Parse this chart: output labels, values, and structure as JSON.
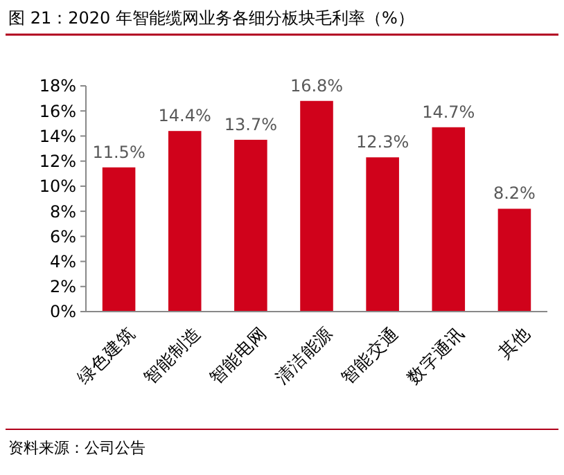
{
  "chart_data": {
    "type": "bar",
    "title": "图 21：2020 年智能缆网业务各细分板块毛利率（%）",
    "categories": [
      "绿色建筑",
      "智能制造",
      "智能电网",
      "清洁能源",
      "智能交通",
      "数字通讯",
      "其他"
    ],
    "values": [
      11.5,
      14.4,
      13.7,
      16.8,
      12.3,
      14.7,
      8.2
    ],
    "value_labels": [
      "11.5%",
      "14.4%",
      "13.7%",
      "16.8%",
      "12.3%",
      "14.7%",
      "8.2%"
    ],
    "color": "#d0021b",
    "ylim": [
      0,
      18
    ],
    "yticks": [
      {
        "value": 0,
        "label": "0%"
      },
      {
        "value": 2,
        "label": "2%"
      },
      {
        "value": 4,
        "label": "4%"
      },
      {
        "value": 6,
        "label": "6%"
      },
      {
        "value": 8,
        "label": "8%"
      },
      {
        "value": 10,
        "label": "10%"
      },
      {
        "value": 12,
        "label": "12%"
      },
      {
        "value": 14,
        "label": "14%"
      },
      {
        "value": 16,
        "label": "16%"
      },
      {
        "value": 18,
        "label": "18%"
      }
    ],
    "annotations": [
      "资料来源：公司公告"
    ]
  }
}
